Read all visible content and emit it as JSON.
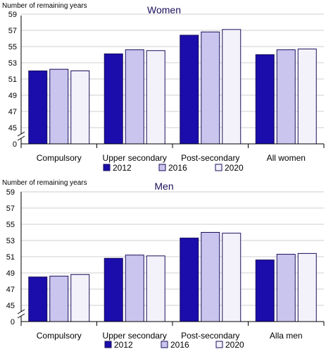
{
  "colors": {
    "series": [
      "#1a0dab",
      "#c9c5ee",
      "#f3f2fb"
    ],
    "bar_stroke": "#1a0f5a",
    "title": "#1a0f5a",
    "axis": "#000000",
    "grid": "#bfbfbf"
  },
  "chart_data": [
    {
      "type": "bar",
      "title": "Women",
      "ylabel": "Number of remaining years",
      "categories": [
        "Compulsory",
        "Upper secondary",
        "Post-secondary",
        "All women"
      ],
      "series": [
        {
          "name": "2012",
          "values": [
            52.0,
            54.1,
            56.4,
            54.0
          ]
        },
        {
          "name": "2016",
          "values": [
            52.2,
            54.6,
            56.8,
            54.6
          ]
        },
        {
          "name": "2020",
          "values": [
            52.0,
            54.5,
            57.1,
            54.7
          ]
        }
      ],
      "y_ticks": [
        "0",
        "45",
        "47",
        "49",
        "51",
        "53",
        "55",
        "57",
        "59"
      ],
      "ylim": [
        44,
        59
      ],
      "axis_break": true,
      "grid": true,
      "legend": [
        "2012",
        "2016",
        "2020"
      ],
      "legend_position": "bottom"
    },
    {
      "type": "bar",
      "title": "Men",
      "ylabel": "Number of remaining years",
      "categories": [
        "Compulsory",
        "Upper secondary",
        "Post-secondary",
        "Alla men"
      ],
      "series": [
        {
          "name": "2012",
          "values": [
            48.5,
            50.8,
            53.3,
            50.6
          ]
        },
        {
          "name": "2016",
          "values": [
            48.6,
            51.2,
            54.0,
            51.3
          ]
        },
        {
          "name": "2020",
          "values": [
            48.8,
            51.1,
            53.9,
            51.4
          ]
        }
      ],
      "y_ticks": [
        "0",
        "45",
        "47",
        "49",
        "51",
        "53",
        "55",
        "57",
        "59"
      ],
      "ylim": [
        44,
        59
      ],
      "axis_break": true,
      "grid": true,
      "legend": [
        "2012",
        "2016",
        "2020"
      ],
      "legend_position": "bottom"
    }
  ]
}
